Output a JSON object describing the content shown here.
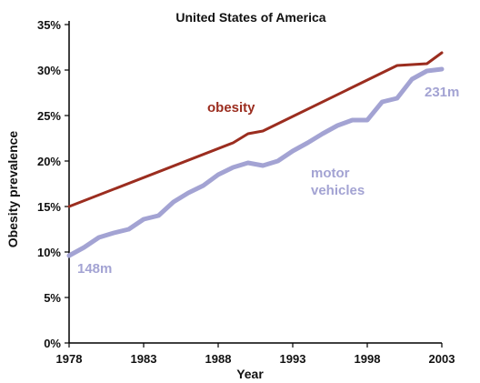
{
  "chart_data": {
    "type": "line",
    "title": "United States of America",
    "xlabel": "Year",
    "ylabel": "Obesity prevalence",
    "xlim": [
      1978,
      2003
    ],
    "ylim": [
      0,
      35
    ],
    "x_ticks": [
      "1978",
      "1983",
      "1988",
      "1993",
      "1998",
      "2003"
    ],
    "y_ticks": [
      "0%",
      "5%",
      "10%",
      "15%",
      "20%",
      "25%",
      "30%",
      "35%"
    ],
    "grid": false,
    "series": [
      {
        "name": "obesity",
        "color": "#9b2d1f",
        "points": [
          {
            "x": 1978,
            "y": 15.0
          },
          {
            "x": 1989,
            "y": 22.0
          },
          {
            "x": 1990,
            "y": 23.0
          },
          {
            "x": 1991,
            "y": 23.3
          },
          {
            "x": 2000,
            "y": 30.5
          },
          {
            "x": 2001,
            "y": 30.6
          },
          {
            "x": 2002,
            "y": 30.7
          },
          {
            "x": 2003,
            "y": 31.9
          }
        ]
      },
      {
        "name": "motor vehicles",
        "color": "#a3a3d3",
        "start_label": "148m",
        "end_label": "231m",
        "points": [
          {
            "x": 1978,
            "y": 9.6
          },
          {
            "x": 1979,
            "y": 10.5
          },
          {
            "x": 1980,
            "y": 11.6
          },
          {
            "x": 1981,
            "y": 12.1
          },
          {
            "x": 1982,
            "y": 12.5
          },
          {
            "x": 1983,
            "y": 13.6
          },
          {
            "x": 1984,
            "y": 14.0
          },
          {
            "x": 1985,
            "y": 15.5
          },
          {
            "x": 1986,
            "y": 16.5
          },
          {
            "x": 1987,
            "y": 17.3
          },
          {
            "x": 1988,
            "y": 18.5
          },
          {
            "x": 1989,
            "y": 19.3
          },
          {
            "x": 1990,
            "y": 19.8
          },
          {
            "x": 1991,
            "y": 19.5
          },
          {
            "x": 1992,
            "y": 20.0
          },
          {
            "x": 1993,
            "y": 21.1
          },
          {
            "x": 1994,
            "y": 22.0
          },
          {
            "x": 1995,
            "y": 23.0
          },
          {
            "x": 1996,
            "y": 23.9
          },
          {
            "x": 1997,
            "y": 24.5
          },
          {
            "x": 1998,
            "y": 24.5
          },
          {
            "x": 1999,
            "y": 26.5
          },
          {
            "x": 2000,
            "y": 26.9
          },
          {
            "x": 2001,
            "y": 29.0
          },
          {
            "x": 2002,
            "y": 29.9
          },
          {
            "x": 2003,
            "y": 30.1
          }
        ]
      }
    ]
  }
}
